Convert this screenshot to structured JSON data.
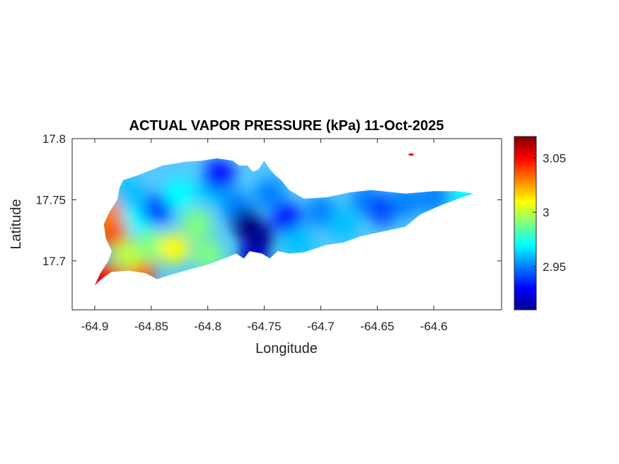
{
  "chart_data": {
    "type": "heatmap",
    "title": "ACTUAL VAPOR PRESSURE (kPa) 11-Oct-2025",
    "xlabel": "Longitude",
    "ylabel": "Latitude",
    "xlim": [
      -64.92,
      -64.54
    ],
    "ylim": [
      17.66,
      17.8
    ],
    "x_ticks": [
      -64.9,
      -64.85,
      -64.8,
      -64.75,
      -64.7,
      -64.65,
      -64.6
    ],
    "x_tick_labels": [
      "-64.9",
      "-64.85",
      "-64.8",
      "-64.75",
      "-64.7",
      "-64.65",
      "-64.6"
    ],
    "y_ticks": [
      17.7,
      17.75,
      17.8
    ],
    "y_tick_labels": [
      "17.7",
      "17.75",
      "17.8"
    ],
    "colorbar": {
      "colormap": "jet",
      "range": [
        2.91,
        3.07
      ],
      "ticks": [
        2.95,
        3.0,
        3.05
      ],
      "tick_labels": [
        "2.95",
        "3",
        "3.05"
      ]
    },
    "grid": false,
    "field_points": [
      {
        "lon": -64.9,
        "lat": 17.68,
        "value": 3.07
      },
      {
        "lon": -64.89,
        "lat": 17.686,
        "value": 3.05
      },
      {
        "lon": -64.885,
        "lat": 17.723,
        "value": 3.04
      },
      {
        "lon": -64.89,
        "lat": 17.74,
        "value": 3.03
      },
      {
        "lon": -64.86,
        "lat": 17.69,
        "value": 3.04
      },
      {
        "lon": -64.87,
        "lat": 17.705,
        "value": 3.0
      },
      {
        "lon": -64.86,
        "lat": 17.735,
        "value": 2.97
      },
      {
        "lon": -64.87,
        "lat": 17.755,
        "value": 2.96
      },
      {
        "lon": -64.845,
        "lat": 17.742,
        "value": 2.94
      },
      {
        "lon": -64.85,
        "lat": 17.712,
        "value": 2.99
      },
      {
        "lon": -64.83,
        "lat": 17.71,
        "value": 3.01
      },
      {
        "lon": -64.825,
        "lat": 17.755,
        "value": 2.97
      },
      {
        "lon": -64.81,
        "lat": 17.73,
        "value": 2.99
      },
      {
        "lon": -64.8,
        "lat": 17.705,
        "value": 2.99
      },
      {
        "lon": -64.795,
        "lat": 17.758,
        "value": 2.96
      },
      {
        "lon": -64.79,
        "lat": 17.77,
        "value": 2.93
      },
      {
        "lon": -64.775,
        "lat": 17.745,
        "value": 2.95
      },
      {
        "lon": -64.765,
        "lat": 17.73,
        "value": 2.91
      },
      {
        "lon": -64.755,
        "lat": 17.718,
        "value": 2.91
      },
      {
        "lon": -64.76,
        "lat": 17.702,
        "value": 2.92
      },
      {
        "lon": -64.745,
        "lat": 17.755,
        "value": 2.95
      },
      {
        "lon": -64.73,
        "lat": 17.735,
        "value": 2.93
      },
      {
        "lon": -64.72,
        "lat": 17.715,
        "value": 2.96
      },
      {
        "lon": -64.7,
        "lat": 17.74,
        "value": 2.95
      },
      {
        "lon": -64.68,
        "lat": 17.73,
        "value": 2.96
      },
      {
        "lon": -64.66,
        "lat": 17.75,
        "value": 2.95
      },
      {
        "lon": -64.645,
        "lat": 17.742,
        "value": 2.94
      },
      {
        "lon": -64.625,
        "lat": 17.748,
        "value": 2.95
      },
      {
        "lon": -64.6,
        "lat": 17.752,
        "value": 2.95
      },
      {
        "lon": -64.57,
        "lat": 17.754,
        "value": 2.97
      },
      {
        "lon": -64.62,
        "lat": 17.787,
        "value": 3.05
      }
    ],
    "island_outline": [
      [
        -64.9,
        17.68
      ],
      [
        -64.893,
        17.686
      ],
      [
        -64.885,
        17.691
      ],
      [
        -64.87,
        17.692
      ],
      [
        -64.855,
        17.69
      ],
      [
        -64.845,
        17.685
      ],
      [
        -64.835,
        17.688
      ],
      [
        -64.82,
        17.692
      ],
      [
        -64.8,
        17.697
      ],
      [
        -64.785,
        17.702
      ],
      [
        -64.775,
        17.706
      ],
      [
        -64.768,
        17.702
      ],
      [
        -64.763,
        17.708
      ],
      [
        -64.752,
        17.706
      ],
      [
        -64.745,
        17.702
      ],
      [
        -64.738,
        17.708
      ],
      [
        -64.728,
        17.706
      ],
      [
        -64.715,
        17.707
      ],
      [
        -64.705,
        17.71
      ],
      [
        -64.695,
        17.713
      ],
      [
        -64.68,
        17.715
      ],
      [
        -64.665,
        17.72
      ],
      [
        -64.645,
        17.724
      ],
      [
        -64.625,
        17.728
      ],
      [
        -64.612,
        17.738
      ],
      [
        -64.595,
        17.745
      ],
      [
        -64.575,
        17.752
      ],
      [
        -64.565,
        17.755
      ],
      [
        -64.58,
        17.757
      ],
      [
        -64.6,
        17.757
      ],
      [
        -64.625,
        17.755
      ],
      [
        -64.655,
        17.758
      ],
      [
        -64.675,
        17.756
      ],
      [
        -64.695,
        17.752
      ],
      [
        -64.715,
        17.751
      ],
      [
        -64.728,
        17.758
      ],
      [
        -64.735,
        17.766
      ],
      [
        -64.74,
        17.77
      ],
      [
        -64.745,
        17.775
      ],
      [
        -64.75,
        17.782
      ],
      [
        -64.755,
        17.775
      ],
      [
        -64.76,
        17.773
      ],
      [
        -64.765,
        17.778
      ],
      [
        -64.772,
        17.778
      ],
      [
        -64.778,
        17.782
      ],
      [
        -64.792,
        17.784
      ],
      [
        -64.805,
        17.782
      ],
      [
        -64.82,
        17.781
      ],
      [
        -64.84,
        17.778
      ],
      [
        -64.862,
        17.77
      ],
      [
        -64.875,
        17.766
      ],
      [
        -64.878,
        17.76
      ],
      [
        -64.88,
        17.75
      ],
      [
        -64.887,
        17.74
      ],
      [
        -64.892,
        17.73
      ],
      [
        -64.89,
        17.718
      ],
      [
        -64.885,
        17.708
      ],
      [
        -64.888,
        17.7
      ],
      [
        -64.895,
        17.69
      ]
    ]
  }
}
